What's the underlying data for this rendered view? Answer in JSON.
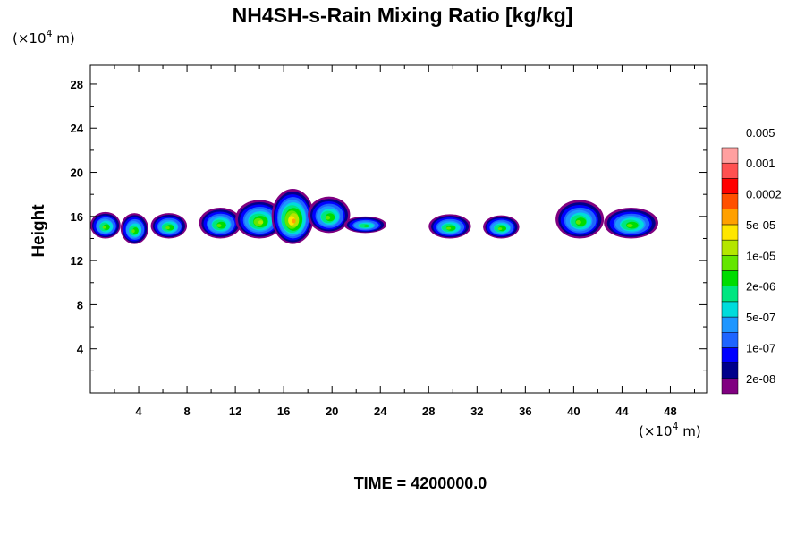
{
  "chart_data": {
    "type": "heatmap",
    "title": "NH4SH-s-Rain Mixing Ratio [kg/kg]",
    "ylabel": "Height",
    "xlabel": "",
    "x_unit_prefix": "(×10",
    "x_unit_exp": "4",
    "x_unit_suffix": " m)",
    "y_unit_prefix": "(×10",
    "y_unit_exp": "4",
    "y_unit_suffix": " m)",
    "xlim": [
      0,
      51
    ],
    "ylim": [
      0,
      29.7
    ],
    "xticks": [
      4,
      8,
      12,
      16,
      20,
      24,
      28,
      32,
      36,
      40,
      44,
      48
    ],
    "yticks": [
      4,
      8,
      12,
      16,
      20,
      24,
      28
    ],
    "colorbar": {
      "colors": [
        "#800080",
        "#00008b",
        "#0000ff",
        "#1e64ff",
        "#1e96ff",
        "#00dcdc",
        "#00e680",
        "#00dc00",
        "#64e600",
        "#b4e600",
        "#ffe600",
        "#ffa000",
        "#ff5000",
        "#ff0000",
        "#ff5050",
        "#ffa0a0"
      ],
      "labels": [
        "2e-08",
        "1e-07",
        "5e-07",
        "2e-06",
        "1e-05",
        "5e-05",
        "0.0002",
        "0.001",
        "0.005"
      ]
    },
    "clouds": [
      {
        "x": [
          0,
          2.5
        ],
        "y": [
          14,
          16.4
        ],
        "max_level": 8
      },
      {
        "x": [
          2.5,
          4.8
        ],
        "y": [
          13.5,
          16.3
        ],
        "max_level": 8
      },
      {
        "x": [
          5,
          8
        ],
        "y": [
          14,
          16.3
        ],
        "max_level": 8
      },
      {
        "x": [
          9,
          12.5
        ],
        "y": [
          14,
          16.8
        ],
        "max_level": 8
      },
      {
        "x": [
          12,
          16
        ],
        "y": [
          14,
          17.5
        ],
        "max_level": 9
      },
      {
        "x": [
          15,
          18.5
        ],
        "y": [
          13.5,
          18.5
        ],
        "max_level": 11
      },
      {
        "x": [
          18,
          21.5
        ],
        "y": [
          14.5,
          17.8
        ],
        "max_level": 8
      },
      {
        "x": [
          21,
          24.5
        ],
        "y": [
          14.5,
          16
        ],
        "max_level": 7
      },
      {
        "x": [
          28,
          31.5
        ],
        "y": [
          14,
          16.2
        ],
        "max_level": 8
      },
      {
        "x": [
          32.5,
          35.5
        ],
        "y": [
          14,
          16.1
        ],
        "max_level": 8
      },
      {
        "x": [
          38.5,
          42.5
        ],
        "y": [
          14,
          17.5
        ],
        "max_level": 8
      },
      {
        "x": [
          42.5,
          47
        ],
        "y": [
          14,
          16.8
        ],
        "max_level": 8
      }
    ]
  },
  "footer": {
    "time_label": "TIME = 4200000.0"
  }
}
